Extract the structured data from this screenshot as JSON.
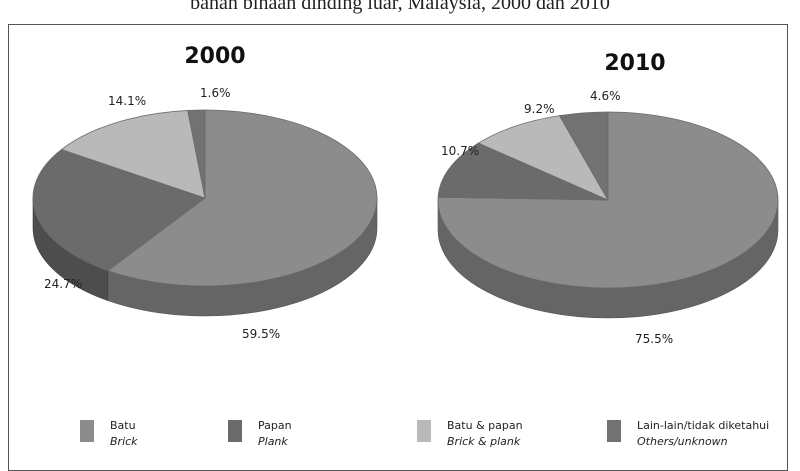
{
  "caption": "bahan binaan dinding luar, Malaysia, 2000 dan 2010",
  "colors": {
    "batu": "#8c8c8c",
    "papan": "#6b6b6b",
    "batu_papan": "#b9b9b9",
    "lain": "#727272"
  },
  "legend": [
    {
      "ms": "Batu",
      "en": "Brick",
      "color": "#8c8c8c"
    },
    {
      "ms": "Papan",
      "en": "Plank",
      "color": "#6b6b6b"
    },
    {
      "ms": "Batu & papan",
      "en": "Brick & plank",
      "color": "#b9b9b9"
    },
    {
      "ms": "Lain-lain/tidak diketahui",
      "en": "Others/unknown",
      "color": "#727272"
    }
  ],
  "chart_data": [
    {
      "type": "pie",
      "title": "2000",
      "categories": [
        "Batu",
        "Papan",
        "Batu & papan",
        "Lain-lain/tidak diketahui"
      ],
      "values": [
        59.5,
        24.7,
        14.1,
        1.6
      ],
      "labels": [
        "59.5%",
        "24.7%",
        "14.1%",
        "1.6%"
      ]
    },
    {
      "type": "pie",
      "title": "2010",
      "categories": [
        "Batu",
        "Papan",
        "Batu & papan",
        "Lain-lain/tidak diketahui"
      ],
      "values": [
        75.5,
        10.7,
        9.2,
        4.6
      ],
      "labels": [
        "75.5%",
        "10.7%",
        "9.2%",
        "4.6%"
      ]
    }
  ]
}
